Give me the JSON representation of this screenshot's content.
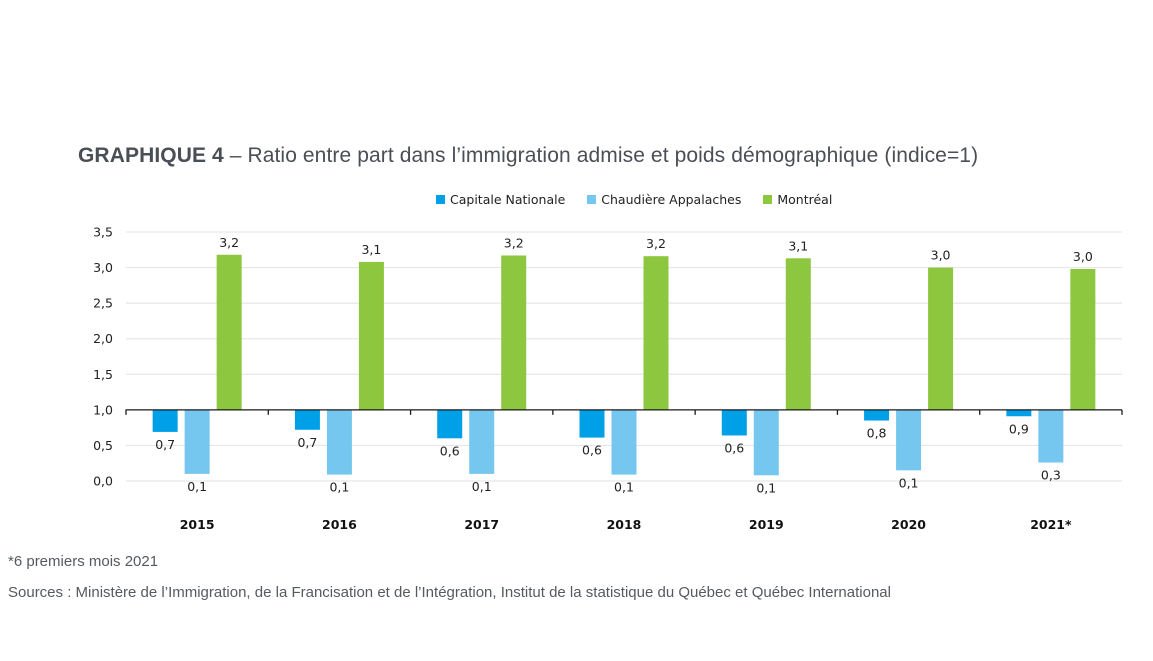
{
  "chart_data": {
    "type": "bar",
    "title_prefix": "GRAPHIQUE 4",
    "title": " – Ratio entre part dans l’immigration admise et poids démographique (indice=1)",
    "xlabel": "",
    "ylabel": "",
    "baseline": 1.0,
    "ylim": [
      0,
      3.5
    ],
    "yticks": [
      0,
      0.5,
      1.0,
      1.5,
      2.0,
      2.5,
      3.0,
      3.5
    ],
    "ytick_labels": [
      "0,0",
      "0,5",
      "1,0",
      "1,5",
      "2,0",
      "2,5",
      "3,0",
      "3,5"
    ],
    "grid": true,
    "legend_position": "top-center",
    "categories": [
      "2015",
      "2016",
      "2017",
      "2018",
      "2019",
      "2020",
      "2021*"
    ],
    "series": [
      {
        "name": "Capitale Nationale",
        "color": "#00a0e9",
        "values": [
          0.69,
          0.72,
          0.6,
          0.61,
          0.64,
          0.85,
          0.91
        ],
        "labels": [
          "0,7",
          "0,7",
          "0,6",
          "0,6",
          "0,6",
          "0,8",
          "0,9"
        ]
      },
      {
        "name": "Chaudière Appalaches",
        "color": "#75c7ef",
        "values": [
          0.1,
          0.09,
          0.1,
          0.09,
          0.08,
          0.15,
          0.26
        ],
        "labels": [
          "0,1",
          "0,1",
          "0,1",
          "0,1",
          "0,1",
          "0,1",
          "0,3"
        ]
      },
      {
        "name": "Montréal",
        "color": "#8dc63f",
        "values": [
          3.18,
          3.08,
          3.17,
          3.16,
          3.13,
          3.0,
          2.98
        ],
        "labels": [
          "3,2",
          "3,1",
          "3,2",
          "3,2",
          "3,1",
          "3,0",
          "3,0"
        ]
      }
    ]
  },
  "footnote": "*6 premiers mois 2021",
  "sources": "Sources : Ministère de l’Immigration, de la Francisation et de l’Intégration, Institut de la statistique du Québec et Québec International"
}
